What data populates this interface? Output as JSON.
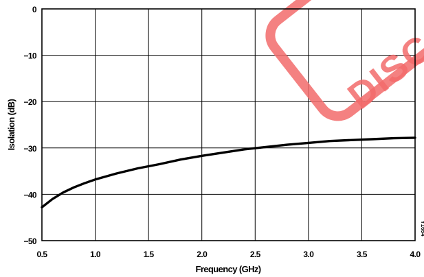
{
  "chart_data": {
    "type": "line",
    "xlabel": "Frequency (GHz)",
    "ylabel": "Isolation (dB)",
    "xlim": [
      0.5,
      4.0
    ],
    "ylim": [
      -50,
      0
    ],
    "x_ticks": [
      "0.5",
      "1.0",
      "1.5",
      "2.0",
      "2.5",
      "3.0",
      "3.5",
      "4.0"
    ],
    "y_ticks": [
      "0",
      "−10",
      "−20",
      "−30",
      "−40",
      "−50"
    ],
    "grid": true,
    "figure_id": "Y1654",
    "series": [
      {
        "x": [
          0.5,
          0.6,
          0.7,
          0.8,
          0.9,
          1.0,
          1.2,
          1.4,
          1.6,
          1.8,
          2.0,
          2.2,
          2.4,
          2.6,
          2.8,
          3.0,
          3.2,
          3.4,
          3.6,
          3.8,
          4.0
        ],
        "y": [
          -42.8,
          -41.0,
          -39.6,
          -38.5,
          -37.6,
          -36.8,
          -35.5,
          -34.4,
          -33.5,
          -32.5,
          -31.7,
          -31.0,
          -30.3,
          -29.8,
          -29.3,
          -28.9,
          -28.5,
          -28.3,
          -28.1,
          -27.9,
          -27.8
        ]
      }
    ],
    "colors": {
      "line": "#000000",
      "grid": "#000000",
      "stamp": "#f26b6b"
    }
  },
  "watermark": {
    "text": "DISCO"
  }
}
